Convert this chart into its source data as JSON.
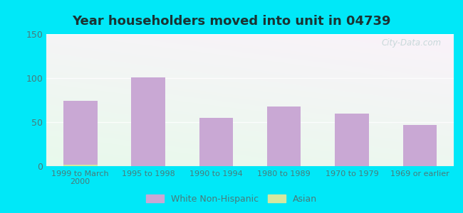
{
  "title": "Year householders moved into unit in 04739",
  "categories": [
    "1999 to March\n2000",
    "1995 to 1998",
    "1990 to 1994",
    "1980 to 1989",
    "1970 to 1979",
    "1969 or earlier"
  ],
  "white_values": [
    74,
    101,
    55,
    68,
    60,
    47
  ],
  "asian_values": [
    2,
    0,
    0,
    0,
    0,
    0
  ],
  "bar_color_white": "#c9a8d4",
  "bar_color_asian": "#d4e8a0",
  "background_outer": "#00e8f8",
  "ylim": [
    0,
    150
  ],
  "yticks": [
    0,
    50,
    100,
    150
  ],
  "bar_width": 0.5,
  "legend_white": "White Non-Hispanic",
  "legend_asian": "Asian",
  "title_color": "#1a3333",
  "tick_color": "#4a7a7a",
  "grid_color": "#d0e8d8",
  "watermark": "City-Data.com"
}
